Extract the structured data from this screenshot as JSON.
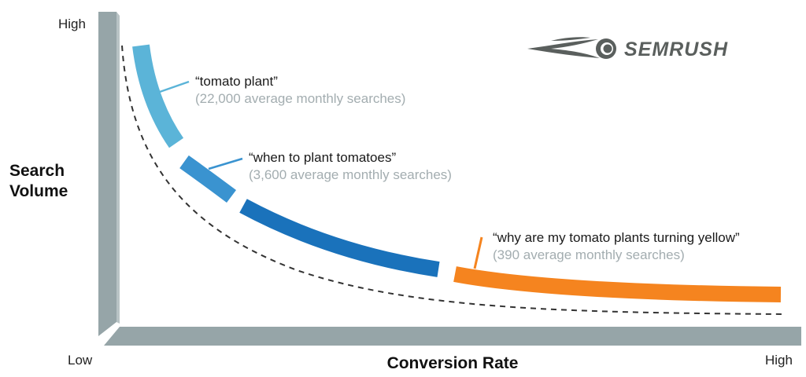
{
  "y_axis": {
    "label_line1": "Search",
    "label_line2": "Volume",
    "high": "High"
  },
  "x_axis": {
    "label": "Conversion Rate",
    "low": "Low",
    "high": "High"
  },
  "keywords": [
    {
      "phrase": "“tomato plant”",
      "searches": "(22,000 average monthly searches)",
      "color": "#5bb4d8"
    },
    {
      "phrase": "“when to plant tomatoes”",
      "searches": "(3,600 average monthly searches)",
      "color": "#3a93d0"
    },
    {
      "phrase": "",
      "searches": "",
      "color": "#1a72bb"
    },
    {
      "phrase": "“why are my tomato plants turning yellow”",
      "searches": "(390 average monthly searches)",
      "color": "#f5841f"
    }
  ],
  "logo": {
    "text": "SEMRUSH",
    "color": "#5a5f5d"
  },
  "colors": {
    "axis": "#96a5a8",
    "axis_dark": "#7e8e91",
    "dashed_curve": "#333333"
  }
}
